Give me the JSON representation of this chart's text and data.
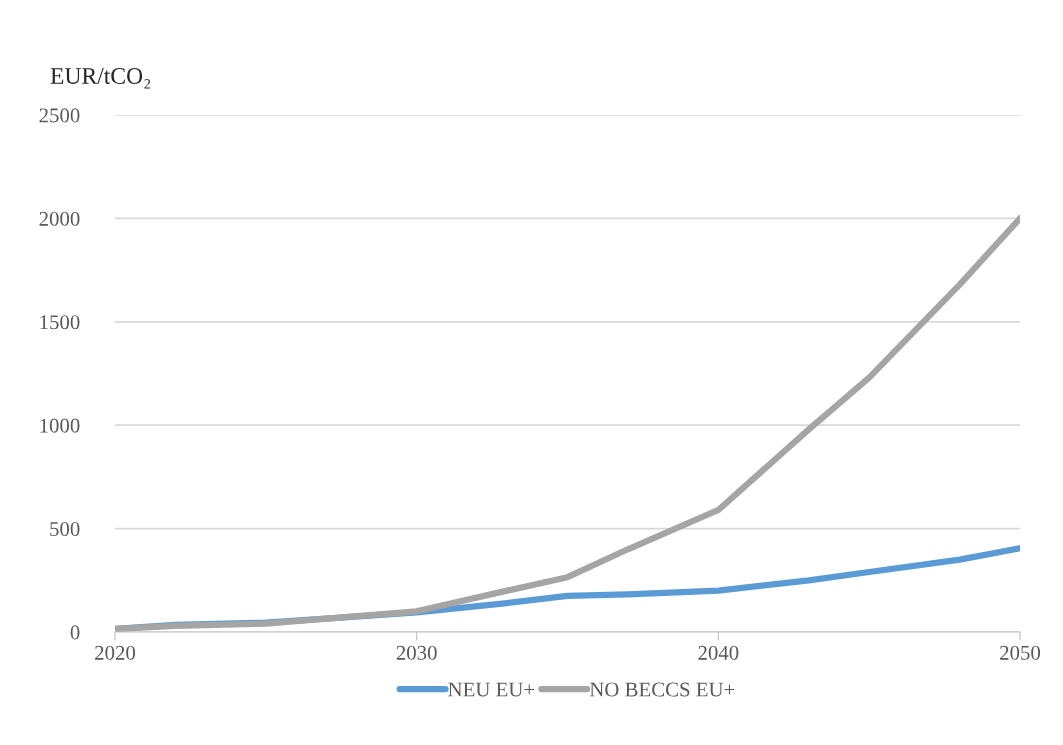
{
  "chart_data": {
    "type": "line",
    "ylabel": "EUR/tCO₂",
    "x": [
      2020,
      2022,
      2025,
      2027,
      2030,
      2033,
      2035,
      2037,
      2040,
      2043,
      2045,
      2048,
      2050
    ],
    "series": [
      {
        "name": "NEU EU+",
        "color": "#5b9bd5",
        "values": [
          15,
          35,
          45,
          65,
          95,
          140,
          175,
          182,
          200,
          250,
          290,
          350,
          405
        ]
      },
      {
        "name": "NO BECCS EU+",
        "color": "#a5a5a5",
        "values": [
          15,
          30,
          40,
          65,
          100,
          200,
          265,
          400,
          590,
          980,
          1230,
          1680,
          2000
        ]
      }
    ],
    "xlim": [
      2020,
      2050
    ],
    "xticks": [
      2020,
      2030,
      2040,
      2050
    ],
    "ylim": [
      0,
      2500
    ],
    "yticks": [
      0,
      500,
      1000,
      1500,
      2000,
      2500
    ],
    "grid": "y",
    "legend": "bottom",
    "marker": "none",
    "line_style": "solid"
  }
}
